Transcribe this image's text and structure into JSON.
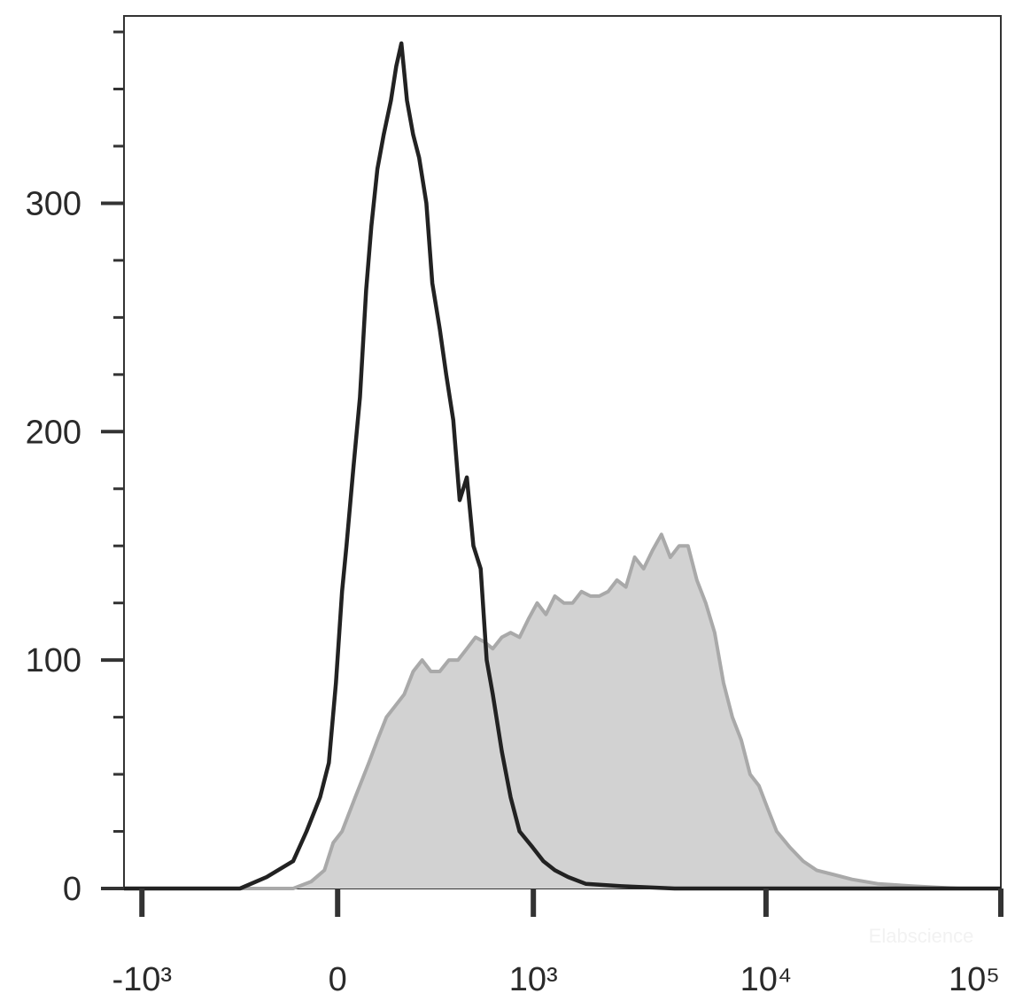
{
  "chart_data": {
    "type": "histogram",
    "xscale": "biexponential",
    "xlim": [
      -1200,
      100000
    ],
    "ylim": [
      0,
      382
    ],
    "xticks": [
      {
        "value": -1000,
        "label": "-10³"
      },
      {
        "value": 0,
        "label": "0"
      },
      {
        "value": 1000,
        "label": "10³"
      },
      {
        "value": 10000,
        "label": "10⁴"
      },
      {
        "value": 100000,
        "label": "10⁵"
      }
    ],
    "yticks": [
      0,
      100,
      200,
      300
    ],
    "yminorticks": [
      25,
      50,
      75,
      125,
      150,
      175,
      225,
      250,
      275,
      325,
      350,
      375
    ],
    "watermark": "Elabscience",
    "series": [
      {
        "color": "#a9a9a9",
        "fill": "#d2d2d2",
        "x": [
          -1200,
          -135,
          -79,
          -39,
          -13,
          13,
          52,
          93,
          120,
          149,
          179,
          210,
          243,
          278,
          314,
          353,
          396,
          442,
          490,
          541,
          595,
          654,
          720,
          790,
          867,
          951,
          1040,
          1137,
          1244,
          1361,
          1487,
          1624,
          1775,
          1938,
          2116,
          2311,
          2523,
          2753,
          3005,
          3280,
          3580,
          3907,
          4264,
          4650,
          5075,
          5536,
          6040,
          6590,
          7190,
          7845,
          8555,
          9330,
          10170,
          11100,
          12650,
          14400,
          16420,
          19550,
          23250,
          30150,
          42700,
          66000,
          100000
        ],
        "values": [
          0,
          0,
          3,
          8,
          20,
          25,
          40,
          55,
          65,
          75,
          80,
          85,
          95,
          100,
          95,
          95,
          100,
          100,
          105,
          110,
          108,
          105,
          110,
          112,
          110,
          118,
          125,
          120,
          128,
          125,
          125,
          130,
          128,
          128,
          130,
          135,
          132,
          145,
          140,
          148,
          155,
          145,
          150,
          150,
          135,
          125,
          112,
          90,
          75,
          65,
          50,
          45,
          35,
          25,
          18,
          12,
          8,
          6,
          4,
          2,
          1,
          0,
          0
        ]
      },
      {
        "color": "#222222",
        "x": [
          -1200,
          -333,
          -226,
          -135,
          -93,
          -52,
          -26,
          -5,
          13,
          26,
          47,
          66,
          85,
          101,
          120,
          140,
          164,
          182,
          200,
          220,
          243,
          266,
          295,
          320,
          353,
          383,
          418,
          451,
          490,
          528,
          573,
          612,
          654,
          720,
          790,
          867,
          993,
          1108,
          1244,
          1423,
          1699,
          2416,
          4078,
          5777,
          100000
        ],
        "values": [
          0,
          0,
          5,
          12,
          25,
          40,
          55,
          90,
          130,
          150,
          185,
          215,
          262,
          290,
          315,
          330,
          345,
          360,
          370,
          345,
          330,
          320,
          300,
          265,
          245,
          225,
          205,
          170,
          180,
          150,
          140,
          100,
          85,
          60,
          40,
          25,
          18,
          12,
          8,
          5,
          2,
          1,
          0,
          0,
          0
        ]
      }
    ]
  }
}
